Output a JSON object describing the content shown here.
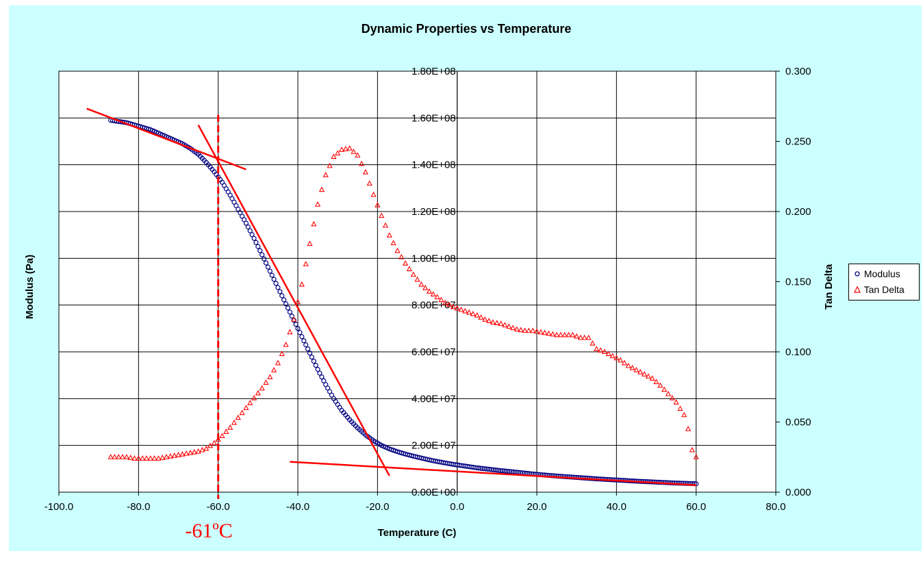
{
  "chart_data": {
    "type": "scatter",
    "title": "Dynamic Properties vs Temperature",
    "xlabel": "Temperature (C)",
    "ylabel_left": "Modulus (Pa)",
    "ylabel_right": "Tan Delta",
    "xlim": [
      -100,
      80
    ],
    "xticks": [
      "-100.0",
      "-80.0",
      "-60.0",
      "-40.0",
      "-20.0",
      "0.0",
      "20.0",
      "40.0",
      "60.0",
      "80.0"
    ],
    "ylim_left": [
      0,
      180000000
    ],
    "yticks_left": [
      "0.00E+00",
      "2.00E+07",
      "4.00E+07",
      "6.00E+07",
      "8.00E+07",
      "1.00E+08",
      "1.20E+08",
      "1.40E+08",
      "1.60E+08",
      "1.80E+08"
    ],
    "ylim_right": [
      0,
      0.3
    ],
    "yticks_right": [
      "0.000",
      "0.050",
      "0.100",
      "0.150",
      "0.200",
      "0.250",
      "0.300"
    ],
    "grid": true,
    "legend_position": "right",
    "series": [
      {
        "name": "Modulus",
        "axis": "left",
        "marker": "circle",
        "color": "#000080",
        "x": [
          -87,
          -85,
          -83,
          -81,
          -80,
          -79,
          -77,
          -75,
          -73,
          -71,
          -69,
          -67,
          -65,
          -63,
          -61,
          -59,
          -57,
          -55,
          -53,
          -51,
          -49,
          -47,
          -45,
          -43,
          -41,
          -39,
          -37,
          -35,
          -33,
          -31,
          -29,
          -27,
          -25,
          -23,
          -21,
          -19,
          -17,
          -15,
          -13,
          -11,
          -9,
          -7,
          -5,
          -3,
          -1,
          1,
          3,
          5,
          10,
          15,
          20,
          25,
          30,
          35,
          40,
          45,
          50,
          55,
          60
        ],
        "y": [
          159000000,
          158500000,
          158000000,
          157000000,
          156500000,
          156000000,
          155000000,
          153500000,
          152000000,
          150500000,
          149000000,
          147000000,
          144500000,
          141000000,
          137000000,
          132500000,
          127000000,
          121000000,
          115000000,
          108500000,
          101500000,
          94500000,
          87500000,
          80500000,
          73500000,
          66500000,
          59500000,
          52500000,
          46000000,
          40000000,
          35000000,
          31000000,
          27500000,
          24500000,
          22000000,
          20000000,
          18500000,
          17300000,
          16300000,
          15400000,
          14600000,
          13800000,
          13100000,
          12500000,
          11900000,
          11400000,
          10900000,
          10400000,
          9400000,
          8500000,
          7600000,
          6900000,
          6300000,
          5700000,
          5200000,
          4700000,
          4300000,
          3900000,
          3600000
        ]
      },
      {
        "name": "Tan Delta",
        "axis": "right",
        "marker": "triangle",
        "color": "#ff0000",
        "x": [
          -87,
          -85,
          -83,
          -81,
          -79,
          -77,
          -75,
          -73,
          -71,
          -69,
          -67,
          -65,
          -63,
          -61,
          -59,
          -57,
          -55,
          -53,
          -51,
          -49,
          -47,
          -45,
          -43,
          -41,
          -39,
          -37,
          -35,
          -33,
          -31,
          -29,
          -27,
          -25,
          -23,
          -21,
          -19,
          -17,
          -15,
          -13,
          -11,
          -9,
          -7,
          -5,
          -3,
          -1,
          1,
          3,
          5,
          7,
          9,
          11,
          13,
          15,
          17,
          19,
          21,
          23,
          25,
          27,
          29,
          31,
          33,
          35,
          37,
          39,
          41,
          43,
          45,
          47,
          49,
          51,
          53,
          55,
          57,
          58,
          59,
          60
        ],
        "y": [
          0.025,
          0.025,
          0.025,
          0.024,
          0.024,
          0.024,
          0.024,
          0.025,
          0.026,
          0.027,
          0.028,
          0.029,
          0.031,
          0.035,
          0.04,
          0.046,
          0.053,
          0.06,
          0.067,
          0.074,
          0.082,
          0.092,
          0.105,
          0.123,
          0.148,
          0.177,
          0.205,
          0.226,
          0.239,
          0.244,
          0.245,
          0.24,
          0.228,
          0.212,
          0.197,
          0.183,
          0.172,
          0.163,
          0.155,
          0.148,
          0.143,
          0.139,
          0.135,
          0.132,
          0.13,
          0.128,
          0.126,
          0.123,
          0.121,
          0.12,
          0.118,
          0.116,
          0.115,
          0.115,
          0.114,
          0.113,
          0.112,
          0.112,
          0.112,
          0.11,
          0.11,
          0.102,
          0.1,
          0.097,
          0.094,
          0.09,
          0.087,
          0.084,
          0.081,
          0.076,
          0.07,
          0.064,
          0.055,
          0.045,
          0.03,
          0.025
        ]
      }
    ],
    "annotations": [
      {
        "type": "vertical-dashed-line",
        "x": -60,
        "color": "#ff0000"
      },
      {
        "type": "text",
        "text": "-61ºC",
        "x": -60,
        "color": "#ff0000"
      },
      {
        "type": "tangent-line",
        "x1": -93,
        "y1": 164000000,
        "x2": -53,
        "y2": 138000000,
        "color": "#ff0000"
      },
      {
        "type": "tangent-line",
        "x1": -65,
        "y1": 157000000,
        "x2": -17,
        "y2": 7000000,
        "color": "#ff0000"
      },
      {
        "type": "tangent-line",
        "x1": -42,
        "y1": 13000000,
        "x2": 60,
        "y2": 3000000,
        "color": "#ff0000"
      }
    ]
  }
}
